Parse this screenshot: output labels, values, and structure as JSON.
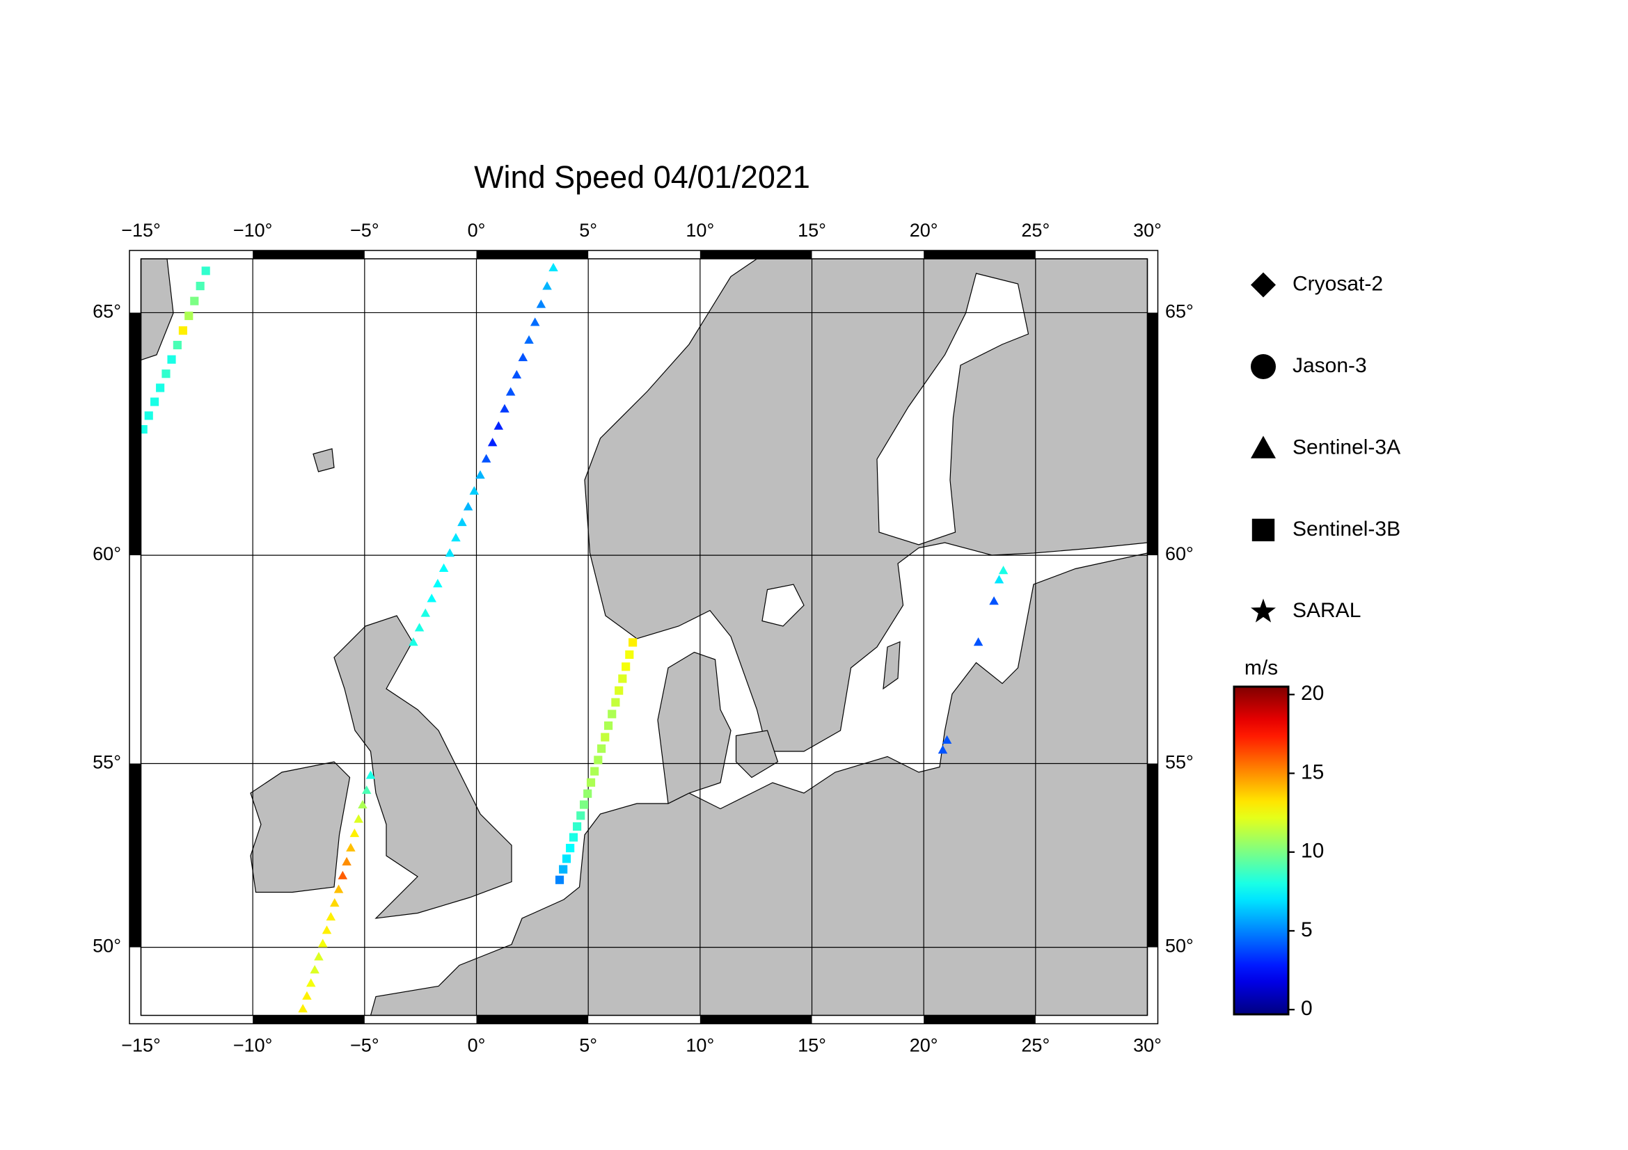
{
  "title": "Wind Speed 04/01/2021",
  "map": {
    "xlim": [
      -15,
      30
    ],
    "ylim": [
      48,
      66
    ],
    "xticks": [
      {
        "value": -15,
        "label": "−15°"
      },
      {
        "value": -10,
        "label": "−10°"
      },
      {
        "value": -5,
        "label": "−5°"
      },
      {
        "value": 0,
        "label": "0°"
      },
      {
        "value": 5,
        "label": "5°"
      },
      {
        "value": 10,
        "label": "10°"
      },
      {
        "value": 15,
        "label": "15°"
      },
      {
        "value": 20,
        "label": "20°"
      },
      {
        "value": 25,
        "label": "25°"
      },
      {
        "value": 30,
        "label": "30°"
      }
    ],
    "yticks": [
      {
        "value": 50,
        "label": "50°"
      },
      {
        "value": 55,
        "label": "55°"
      },
      {
        "value": 60,
        "label": "60°"
      },
      {
        "value": 65,
        "label": "65°"
      }
    ],
    "grid": true
  },
  "missions": [
    {
      "name": "Cryosat-2",
      "marker": "diamond",
      "tracks": []
    },
    {
      "name": "Jason-3",
      "marker": "circle",
      "tracks": []
    },
    {
      "name": "Sentinel-3A",
      "marker": "triangle",
      "tracks": [
        {
          "lon": [
            -2.82,
            -2.55,
            -2.28,
            -2.0,
            -1.73,
            -1.46,
            -1.19,
            -0.92,
            -0.64,
            -0.37,
            -0.1,
            0.17,
            0.44,
            0.72,
            0.99,
            1.26,
            1.53,
            1.8,
            2.08,
            2.35,
            2.62,
            2.89,
            3.16,
            3.44
          ],
          "lat": [
            58.0,
            58.34,
            58.68,
            59.02,
            59.36,
            59.71,
            60.05,
            60.39,
            60.73,
            61.07,
            61.41,
            61.75,
            62.09,
            62.43,
            62.77,
            63.12,
            63.46,
            63.8,
            64.14,
            64.48,
            64.82,
            65.16,
            65.5,
            65.84
          ],
          "speed": [
            8,
            8,
            8,
            7.5,
            7.5,
            7.5,
            7,
            7,
            6.5,
            6,
            6.5,
            6,
            4,
            3,
            3,
            3.5,
            4,
            4,
            4,
            4.5,
            4.5,
            5,
            6,
            7
          ]
        },
        {
          "lon": [
            -7.76,
            -7.58,
            -7.4,
            -7.23,
            -7.05,
            -6.87,
            -6.69,
            -6.51,
            -6.34,
            -6.16,
            -5.98,
            -5.8,
            -5.62,
            -5.45,
            -5.27,
            -5.09,
            -4.91,
            -4.73
          ],
          "lat": [
            48.2,
            48.58,
            48.96,
            49.35,
            49.73,
            50.11,
            50.49,
            50.87,
            51.26,
            51.64,
            52.02,
            52.4,
            52.78,
            53.17,
            53.55,
            53.93,
            54.31,
            54.7
          ],
          "speed": [
            13,
            13,
            12.5,
            12,
            12,
            12.5,
            13,
            13,
            13.5,
            14,
            16,
            15,
            14,
            13,
            12,
            11,
            9,
            8
          ]
        },
        {
          "lon": [
            20.85,
            21.04
          ],
          "lat": [
            55.35,
            55.6
          ],
          "speed": [
            4,
            4
          ]
        },
        {
          "lon": [
            22.44,
            23.14,
            23.37,
            23.56
          ],
          "lat": [
            58.0,
            58.96,
            59.45,
            59.66
          ],
          "speed": [
            4,
            4,
            7,
            8
          ]
        }
      ]
    },
    {
      "name": "Sentinel-3B",
      "marker": "square",
      "tracks": [
        {
          "lon": [
            -14.9,
            -14.65,
            -14.39,
            -14.14,
            -13.88,
            -13.63,
            -13.37,
            -13.12,
            -12.86,
            -12.61,
            -12.35,
            -12.1
          ],
          "lat": [
            62.7,
            62.98,
            63.26,
            63.54,
            63.82,
            64.1,
            64.38,
            64.66,
            64.94,
            65.22,
            65.5,
            65.78
          ],
          "speed": [
            8,
            8,
            8,
            8,
            8.5,
            8,
            9,
            13,
            11,
            10,
            9,
            8.5
          ]
        },
        {
          "lon": [
            3.72,
            3.88,
            4.03,
            4.19,
            4.34,
            4.5,
            4.66,
            4.81,
            4.97,
            5.12,
            5.28,
            5.44,
            5.59,
            5.75,
            5.9,
            6.06,
            6.22,
            6.37,
            6.53,
            6.68,
            6.84,
            6.99
          ],
          "lat": [
            51.9,
            52.19,
            52.48,
            52.77,
            53.06,
            53.35,
            53.64,
            53.93,
            54.22,
            54.51,
            54.8,
            55.09,
            55.38,
            55.67,
            55.96,
            56.25,
            56.54,
            56.83,
            57.12,
            57.41,
            57.7,
            57.99
          ],
          "speed": [
            5,
            6,
            7,
            7.5,
            8,
            8.5,
            9,
            10,
            10.5,
            11,
            11,
            11,
            11,
            11.5,
            11,
            11,
            11.5,
            12,
            12,
            12.5,
            12.5,
            13
          ]
        }
      ]
    },
    {
      "name": "SARAL",
      "marker": "star",
      "tracks": []
    }
  ],
  "colorbar": {
    "label": "m/s",
    "clim": [
      -0.3,
      20.5
    ],
    "ticks": [
      0,
      5,
      10,
      15,
      20
    ],
    "colormap": "jet"
  }
}
